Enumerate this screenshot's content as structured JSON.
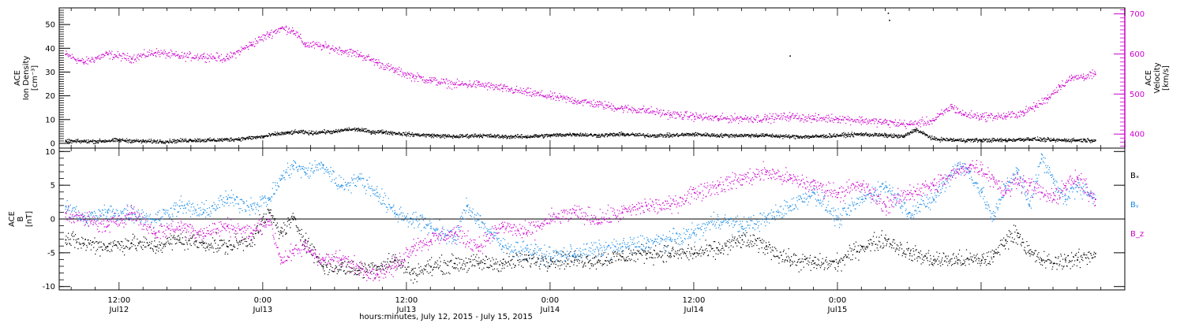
{
  "chart_data": [
    {
      "type": "scatter",
      "panel": "ion-density-velocity",
      "left_axis": {
        "label_lines": [
          "ACE",
          "Ion Density",
          "[cm⁻³]"
        ],
        "ylim": [
          -2,
          57
        ],
        "ticks": [
          "0",
          "10",
          "20",
          "30",
          "40",
          "50"
        ],
        "tick_values": [
          0,
          10,
          20,
          30,
          40,
          50
        ]
      },
      "right_axis": {
        "label_lines": [
          "ACE",
          "Velocity",
          "[km/s]"
        ],
        "ylim": [
          365,
          715
        ],
        "ticks": [
          "400",
          "500",
          "600",
          "700"
        ],
        "tick_values": [
          400,
          500,
          600,
          700
        ],
        "color": "#cc00cc"
      },
      "xlim_hours": [
        -17,
        72
      ],
      "series": [
        {
          "axis": "right",
          "color": "#cc00cc",
          "x": [
            -16.5,
            -15,
            -13,
            -11,
            -9,
            -7,
            -5,
            -3,
            -1,
            0.5,
            1.5,
            2.5,
            3.5,
            5,
            6.5,
            8,
            9.5,
            11,
            12.5,
            14,
            16,
            18,
            20,
            22,
            24,
            26,
            28,
            30,
            32,
            34,
            36,
            38,
            40,
            42,
            44,
            46,
            48,
            50,
            52,
            54,
            56,
            57.5,
            58.5,
            60,
            62,
            63.5,
            64.5,
            65.5,
            66.5,
            67.5,
            68.5,
            69.5
          ],
          "y": [
            600,
            580,
            600,
            590,
            605,
            595,
            595,
            590,
            625,
            650,
            665,
            660,
            625,
            620,
            610,
            600,
            580,
            560,
            545,
            535,
            525,
            525,
            515,
            505,
            495,
            485,
            475,
            465,
            460,
            450,
            445,
            440,
            440,
            440,
            445,
            440,
            440,
            435,
            430,
            425,
            435,
            470,
            450,
            445,
            445,
            455,
            470,
            490,
            520,
            540,
            545,
            550
          ]
        },
        {
          "axis": "left",
          "color": "#000000",
          "x": [
            -16.5,
            -14,
            -12,
            -10,
            -8,
            -6,
            -4,
            -2,
            0,
            1,
            2,
            3,
            4,
            5,
            6,
            7,
            8,
            9,
            10,
            12,
            14,
            16,
            18,
            20,
            22,
            24,
            26,
            28,
            30,
            32,
            34,
            36,
            38,
            40,
            42,
            44,
            46,
            48,
            50,
            52,
            53.5,
            54.5,
            56,
            58,
            60,
            62,
            64,
            66,
            68,
            69.5
          ],
          "y": [
            1,
            1,
            1.5,
            1,
            1,
            1.5,
            1.5,
            2,
            3,
            4,
            4.5,
            5,
            4.5,
            5,
            5,
            6,
            6,
            5,
            5,
            4,
            3.5,
            3,
            3.5,
            3,
            3,
            3.5,
            4,
            3.5,
            4,
            3.5,
            3.5,
            4,
            3.5,
            3.5,
            3.5,
            3,
            3,
            3.5,
            4,
            3.5,
            3,
            6,
            2,
            1.5,
            1.5,
            1.5,
            2,
            1.5,
            1.5,
            1.5
          ]
        }
      ]
    },
    {
      "type": "scatter",
      "panel": "magnetic-field",
      "left_axis": {
        "label_lines": [
          "ACE",
          "B",
          "[nT]"
        ],
        "ylim": [
          -10.5,
          10.5
        ],
        "ticks": [
          "-10",
          "-5",
          "0",
          "5",
          "10"
        ],
        "tick_values": [
          -10,
          -5,
          0,
          5,
          10
        ]
      },
      "legend": [
        "Bₓ",
        "Bᵧ",
        "B_z"
      ],
      "xlim_hours": [
        -17,
        72
      ],
      "x_ticks": {
        "hours": [
          -12,
          0,
          12,
          24,
          36,
          48,
          60,
          72
        ],
        "time_labels": [
          "12:00",
          "0:00",
          "12:00",
          "0:00",
          "12:00",
          "0:00"
        ],
        "date_labels": [
          "Jul12",
          "Jul13",
          "Jul13",
          "Jul14",
          "Jul14",
          "Jul15"
        ],
        "label_hours": [
          -12,
          0,
          12,
          24,
          36,
          48
        ]
      },
      "xlabel": "hours:minutes, July 12, 2015 - July 15, 2015",
      "series": [
        {
          "name": "Bₓ",
          "color": "#000000",
          "x": [
            -16.5,
            -15,
            -13,
            -11,
            -9,
            -7,
            -5,
            -3,
            -1,
            0.5,
            1.5,
            2.5,
            3.5,
            5,
            6.5,
            8,
            9.5,
            11,
            12.5,
            14,
            16,
            18,
            20,
            22,
            24,
            26,
            28,
            30,
            32,
            34,
            36,
            38,
            40,
            42,
            44,
            46,
            48,
            50,
            52,
            54,
            56,
            58,
            60,
            61,
            62,
            63,
            64,
            65,
            66,
            67,
            68,
            69.5
          ],
          "y": [
            -3,
            -3.5,
            -4,
            -3.5,
            -4,
            -3,
            -3.5,
            -4,
            -3,
            1,
            -2,
            0,
            -3,
            -7,
            -7,
            -7.5,
            -7,
            -6,
            -8,
            -7,
            -6.5,
            -6.5,
            -6.5,
            -6,
            -6,
            -6,
            -6,
            -5.5,
            -5,
            -5,
            -5,
            -4.5,
            -3,
            -4,
            -6,
            -6.5,
            -6.5,
            -4,
            -3,
            -5,
            -6,
            -6,
            -6,
            -5.5,
            -3,
            -2,
            -5,
            -6,
            -6.5,
            -6,
            -6,
            -5
          ]
        },
        {
          "name": "Bᵧ",
          "color": "#1a8ce6",
          "x": [
            -16.5,
            -15,
            -13,
            -11,
            -9,
            -7,
            -5,
            -3,
            -1,
            0.5,
            1.5,
            2.5,
            3.5,
            5,
            6.5,
            8,
            9.5,
            11,
            12.5,
            14,
            16,
            17,
            18,
            20,
            22,
            24,
            26,
            28,
            30,
            32,
            34,
            36,
            38,
            40,
            42,
            44,
            46,
            48,
            50,
            52,
            54,
            56,
            58,
            59,
            60,
            61,
            62,
            63,
            64,
            65,
            66,
            67,
            68,
            69.5
          ],
          "y": [
            2,
            0,
            1,
            1,
            0,
            2,
            1,
            3,
            2,
            3,
            6,
            8,
            7,
            8,
            5,
            6,
            4,
            1,
            0,
            -1,
            -3,
            2,
            0,
            -4,
            -4.5,
            -5.5,
            -5,
            -4.5,
            -4,
            -3.5,
            -3,
            -2,
            0,
            -1,
            0,
            2,
            4,
            0,
            3,
            5,
            1,
            3,
            8,
            7,
            4,
            0,
            5,
            7,
            2,
            9,
            6,
            3,
            5,
            3
          ]
        },
        {
          "name": "B_z",
          "color": "#cc00cc",
          "x": [
            -16.5,
            -15,
            -13,
            -11,
            -9,
            -7,
            -5,
            -3,
            -1,
            0.5,
            1.5,
            2.5,
            3.5,
            5,
            6.5,
            8,
            9.5,
            11,
            12.5,
            14,
            16,
            18,
            20,
            22,
            24,
            26,
            28,
            30,
            32,
            34,
            36,
            38,
            40,
            42,
            44,
            46,
            48,
            50,
            52,
            54,
            56,
            58,
            59,
            60,
            61,
            62,
            63,
            64,
            65,
            66,
            67,
            68,
            69.5
          ],
          "y": [
            1,
            0,
            -1,
            1,
            -2,
            -1,
            -2,
            -1,
            -2,
            0,
            -6,
            -5,
            -4,
            -6,
            -6,
            -7,
            -8,
            -7,
            -4,
            -3,
            -2,
            -4,
            -1,
            -2,
            0,
            1,
            0,
            1,
            2,
            2,
            4,
            5,
            6,
            7,
            6,
            5,
            4,
            5,
            2,
            4,
            5,
            7,
            8,
            7.5,
            6,
            4,
            6,
            5,
            4,
            3,
            5,
            6,
            3
          ]
        }
      ]
    }
  ],
  "isolated_points": [
    {
      "panel": 0,
      "x_hour": 52.2,
      "y": 55
    },
    {
      "panel": 0,
      "x_hour": 52.3,
      "y": 52
    },
    {
      "panel": 0,
      "x_hour": 44.0,
      "y": 37
    }
  ]
}
